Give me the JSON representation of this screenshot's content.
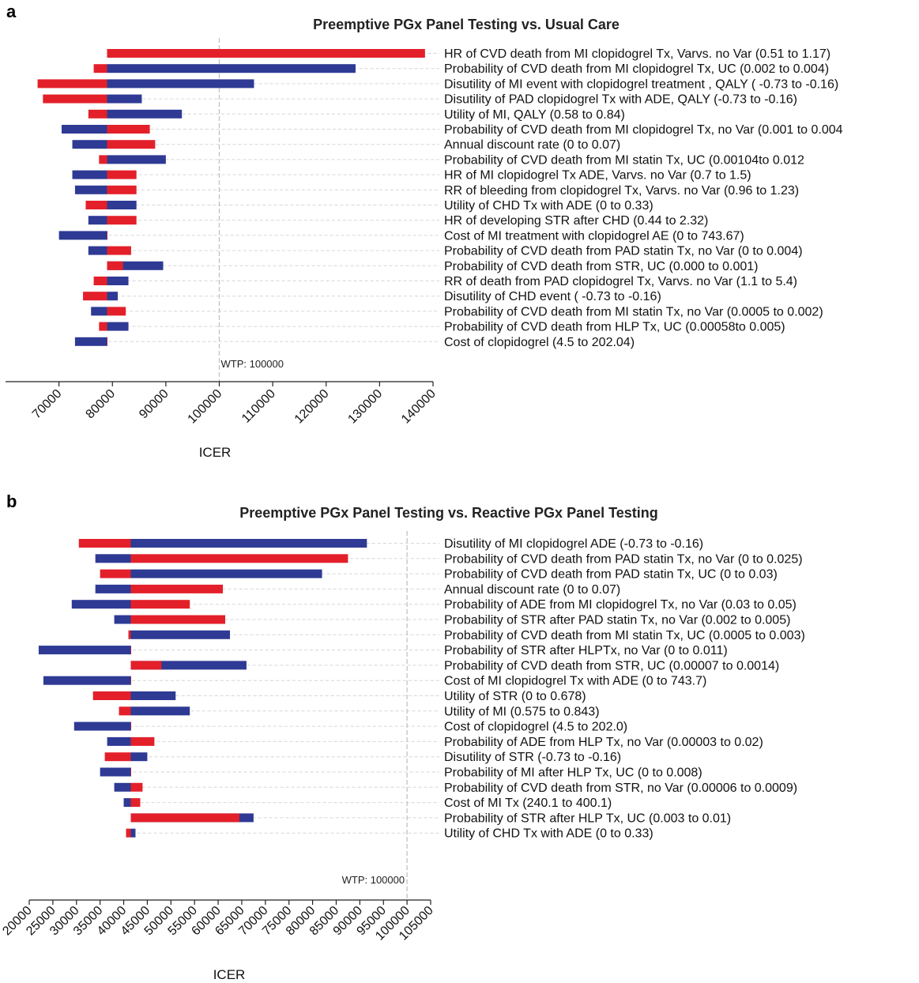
{
  "colors": {
    "low": "#2e3a94",
    "high": "#e3202a"
  },
  "chart_data": [
    {
      "panel": "a",
      "type": "bar",
      "orientation": "horizontal-tornado",
      "title": "Preemptive PGx Panel Testing vs. Usual Care",
      "xlabel": "ICER",
      "xlim": [
        60000,
        140000
      ],
      "xticks": [
        70000,
        80000,
        90000,
        100000,
        110000,
        120000,
        130000,
        140000
      ],
      "baseline": 79000,
      "wtp": {
        "value": 100000,
        "label": "WTP: 100000"
      },
      "bars": [
        {
          "label": "HR of CVD death from MI clopidogrel Tx, Varvs. no Var (0.51 to 1.17)",
          "blue": 79500,
          "red": 138500
        },
        {
          "label": "Probability of CVD death from MI clopidogrel Tx, UC (0.002 to 0.004)",
          "blue": 125500,
          "red": 76500
        },
        {
          "label": "Disutility of MI event with clopidogrel treatment , QALY ( -0.73 to -0.16)",
          "blue": 106500,
          "red": 66000
        },
        {
          "label": "Disutility of PAD clopidogrel Tx with ADE, QALY (-0.73 to -0.16)",
          "blue": 85500,
          "red": 67000
        },
        {
          "label": "Utility of MI, QALY (0.58 to 0.84)",
          "blue": 93000,
          "red": 75500
        },
        {
          "label": "Probability of CVD death from MI clopidogrel  Tx, no Var (0.001 to 0.004",
          "blue": 70500,
          "red": 87000
        },
        {
          "label": "Annual discount rate (0 to 0.07)",
          "blue": 72500,
          "red": 88000
        },
        {
          "label": "Probability of CVD death from MI statin Tx, UC (0.00104to 0.012",
          "blue": 90000,
          "red": 77500
        },
        {
          "label": "HR of MI clopidogrel Tx ADE, Varvs. no Var (0.7 to 1.5)",
          "blue": 72500,
          "red": 84500
        },
        {
          "label": "RR of bleeding from clopidogrel Tx, Varvs. no Var (0.96 to 1.23)",
          "blue": 73000,
          "red": 84500
        },
        {
          "label": "Utility of CHD Tx with ADE (0 to 0.33)",
          "blue": 84500,
          "red": 75000
        },
        {
          "label": "HR of developing STR after CHD (0.44 to 2.32)",
          "blue": 75500,
          "red": 84500
        },
        {
          "label": "Cost of MI treatment with clopidogrel AE (0 to 743.67)",
          "blue": 70000,
          "red": 79000
        },
        {
          "label": "Probability of CVD death from PAD statin Tx, no Var (0 to 0.004)",
          "blue": 75500,
          "red": 83500
        },
        {
          "label": "Probability of CVD death from STR, UC (0.000 to 0.001)",
          "blue": 89500,
          "red": 82000
        },
        {
          "label": "RR of death from PAD clopidogrel Tx, Varvs. no Var (1.1 to 5.4)",
          "blue": 83000,
          "red": 76500
        },
        {
          "label": "Disutility of CHD event ( -0.73 to -0.16)",
          "blue": 81000,
          "red": 74500
        },
        {
          "label": "Probability of CVD death from MI statin Tx, no Var (0.0005 to 0.002)",
          "blue": 76000,
          "red": 82500
        },
        {
          "label": "Probability of CVD death from HLP Tx, UC (0.00058to 0.005)",
          "blue": 83000,
          "red": 77500
        },
        {
          "label": "Cost of clopidogrel (4.5 to 202.04)",
          "blue": 73000,
          "red": 79000
        }
      ]
    },
    {
      "panel": "b",
      "type": "bar",
      "orientation": "horizontal-tornado",
      "title": "Preemptive PGx Panel Testing vs. Reactive PGx Panel Testing",
      "xlabel": "ICER",
      "xlim": [
        20000,
        105000
      ],
      "xticks": [
        20000,
        25000,
        30000,
        35000,
        40000,
        45000,
        50000,
        55000,
        60000,
        65000,
        70000,
        75000,
        80000,
        85000,
        90000,
        95000,
        100000,
        105000
      ],
      "baseline": 41500,
      "wtp": {
        "value": 100000,
        "label": "WTP: 100000"
      },
      "bars": [
        {
          "label": "Disutility of MI clopidogrel ADE (-0.73 to -0.16)",
          "blue": 91500,
          "red": 30500
        },
        {
          "label": "Probability of CVD death from PAD statin Tx, no Var (0 to 0.025)",
          "blue": 34000,
          "red": 87500
        },
        {
          "label": "Probability of CVD death from PAD statin Tx, UC (0 to 0.03)",
          "blue": 82000,
          "red": 35000
        },
        {
          "label": "Annual discount rate (0 to 0.07)",
          "blue": 34000,
          "red": 61000
        },
        {
          "label": "Probability of ADE from MI clopidogrel Tx, no Var (0.03 to 0.05)",
          "blue": 29000,
          "red": 54000
        },
        {
          "label": "Probability of STR after PAD statin Tx, no Var (0.002 to 0.005)",
          "blue": 38000,
          "red": 61500
        },
        {
          "label": "Probability of CVD death from MI statin Tx, UC (0.0005 to 0.003)",
          "blue": 62500,
          "red": 41000
        },
        {
          "label": "Probability of STR after HLPTx, no Var (0 to 0.011)",
          "blue": 22000,
          "red": 41500
        },
        {
          "label": "Probability of CVD death from STR, UC (0.00007 to 0.0014)",
          "blue": 66000,
          "red": 48000
        },
        {
          "label": "Cost of MI clopidogrel Tx with ADE (0 to 743.7)",
          "blue": 23000,
          "red": 41500
        },
        {
          "label": "Utility of STR (0 to 0.678)",
          "blue": 51000,
          "red": 33500
        },
        {
          "label": "Utility of MI (0.575 to 0.843)",
          "blue": 54000,
          "red": 39000
        },
        {
          "label": "Cost of clopidogrel (4.5 to 202.0)",
          "blue": 29500,
          "red": 41500
        },
        {
          "label": "Probability of ADE from HLP Tx, no Var (0.00003 to 0.02)",
          "blue": 36500,
          "red": 46500
        },
        {
          "label": "Disutility of STR (-0.73 to -0.16)",
          "blue": 45000,
          "red": 36000
        },
        {
          "label": "Probability of MI after HLP Tx, UC (0 to 0.008)",
          "blue": 35000,
          "red": 41500
        },
        {
          "label": "Probability of CVD death from STR, no Var (0.00006 to 0.0009)",
          "blue": 38000,
          "red": 44000
        },
        {
          "label": "Cost of MI Tx (240.1 to 400.1)",
          "blue": 40000,
          "red": 43500
        },
        {
          "label": "Probability of STR after HLP Tx, UC (0.003 to 0.01)",
          "blue": 67500,
          "red": 64500
        },
        {
          "label": "Utility of CHD Tx with ADE (0 to 0.33)",
          "blue": 42500,
          "red": 40500
        }
      ]
    }
  ]
}
